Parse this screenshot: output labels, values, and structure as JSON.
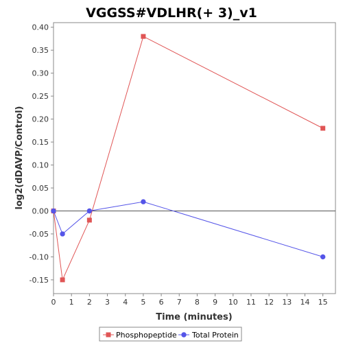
{
  "chart_data": {
    "type": "line",
    "title": "VGGSS#VDLHR(+ 3)_v1",
    "xlabel": "Time (minutes)",
    "ylabel": "log2(dDAVP/Control)",
    "xlim": [
      0,
      15.7
    ],
    "ylim": [
      -0.18,
      0.41
    ],
    "xticks": [
      0,
      1,
      2,
      3,
      4,
      5,
      6,
      7,
      8,
      9,
      10,
      11,
      12,
      13,
      14,
      15
    ],
    "yticks": [
      -0.15,
      -0.1,
      -0.05,
      0.0,
      0.05,
      0.1,
      0.15,
      0.2,
      0.25,
      0.3,
      0.35,
      0.4
    ],
    "ytick_labels": [
      "-0.15",
      "-0.10",
      "-0.05",
      "0.00",
      "0.05",
      "0.10",
      "0.15",
      "0.20",
      "0.25",
      "0.30",
      "0.35",
      "0.40"
    ],
    "legend_position": "bottom",
    "grid": false,
    "series": [
      {
        "name": "Phosphopeptide",
        "color": "#e05555",
        "marker": "square",
        "x": [
          0,
          0.5,
          2,
          5,
          15
        ],
        "y": [
          0.0,
          -0.15,
          -0.02,
          0.38,
          0.18
        ]
      },
      {
        "name": "Total Protein",
        "color": "#5555e8",
        "marker": "circle",
        "x": [
          0,
          0.5,
          2,
          5,
          15
        ],
        "y": [
          0.0,
          -0.05,
          0.0,
          0.02,
          -0.1
        ]
      }
    ]
  }
}
